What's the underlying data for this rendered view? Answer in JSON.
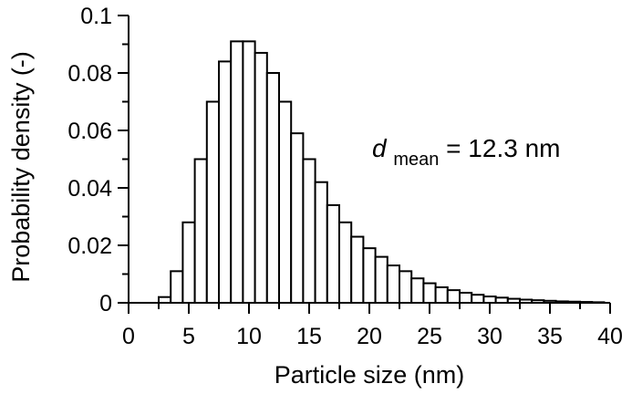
{
  "chart_data": {
    "type": "bar",
    "xlabel": "Particle size (nm)",
    "ylabel": "Probability density (-)",
    "xlim": [
      0,
      40
    ],
    "ylim": [
      0,
      0.1
    ],
    "xticks": [
      "0",
      "5",
      "10",
      "15",
      "20",
      "25",
      "30",
      "35",
      "40"
    ],
    "yticks": [
      "0",
      "0.02",
      "0.04",
      "0.06",
      "0.08",
      "0.1"
    ],
    "bin_width": 1,
    "bin_centers": [
      3,
      4,
      5,
      6,
      7,
      8,
      9,
      10,
      11,
      12,
      13,
      14,
      15,
      16,
      17,
      18,
      19,
      20,
      21,
      22,
      23,
      24,
      25,
      26,
      27,
      28,
      29,
      30,
      31,
      32,
      33,
      34,
      35,
      36,
      37,
      38,
      39
    ],
    "values": [
      0.002,
      0.011,
      0.028,
      0.05,
      0.07,
      0.084,
      0.091,
      0.091,
      0.087,
      0.08,
      0.07,
      0.059,
      0.05,
      0.042,
      0.034,
      0.028,
      0.023,
      0.019,
      0.016,
      0.013,
      0.011,
      0.0085,
      0.0068,
      0.0054,
      0.0044,
      0.0035,
      0.0028,
      0.0022,
      0.0018,
      0.0014,
      0.0011,
      0.0009,
      0.0007,
      0.0005,
      0.0004,
      0.0003,
      0.0002
    ],
    "grid": false,
    "annotation": {
      "symbol": "d",
      "subscript": "mean",
      "text": " = 12.3 nm"
    }
  }
}
